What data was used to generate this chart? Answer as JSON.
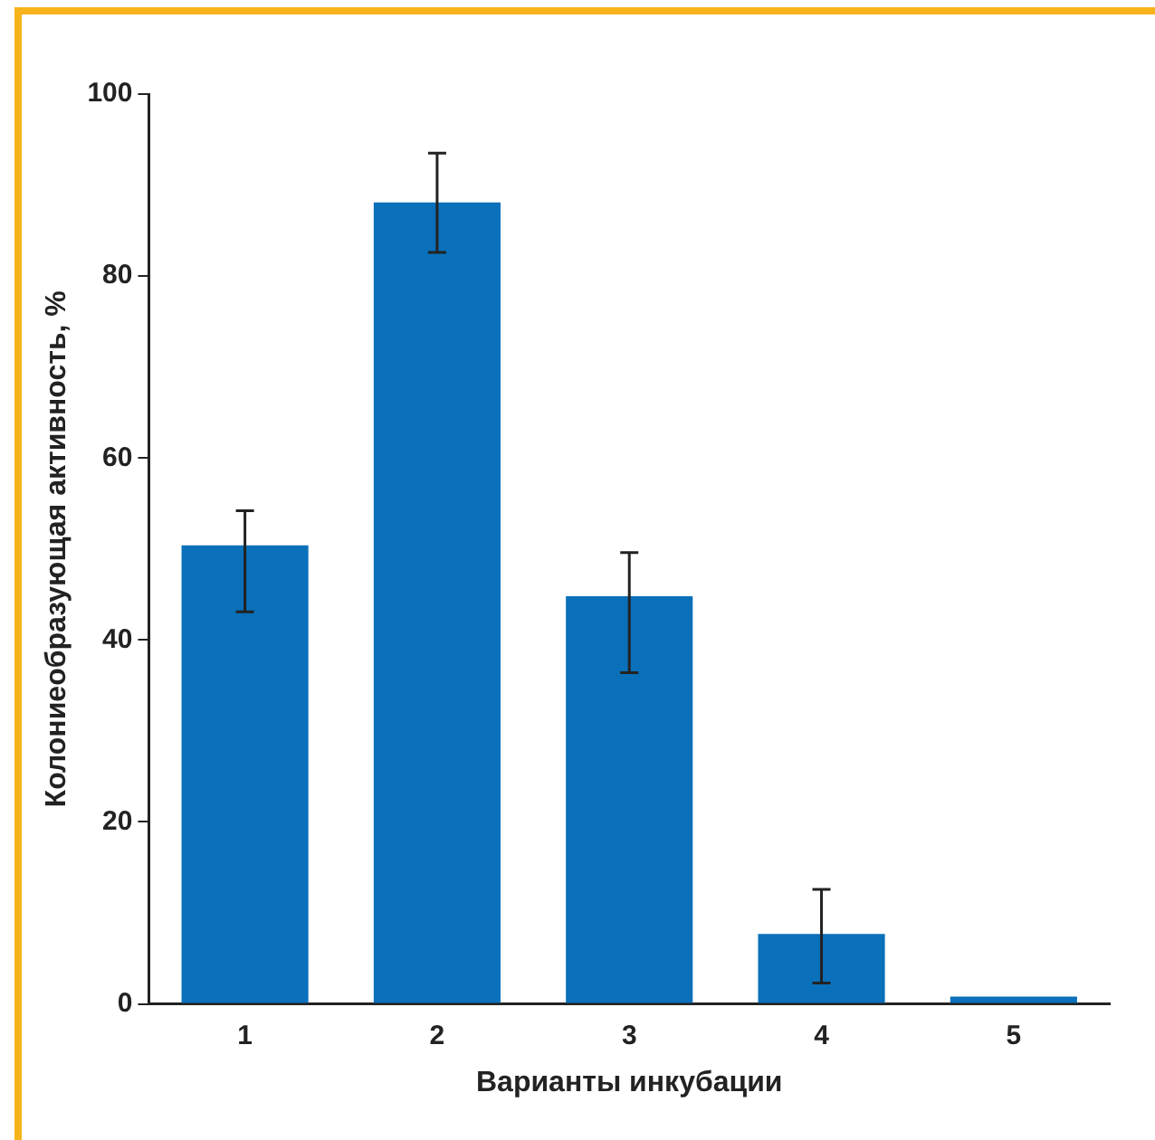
{
  "chart_data": {
    "type": "bar",
    "xlabel": "Варианты инкубации",
    "ylabel": "Колониеобразующая активность, %",
    "categories": [
      "1",
      "2",
      "3",
      "4",
      "5"
    ],
    "values": [
      50.4,
      88.1,
      44.8,
      7.7,
      0.8
    ],
    "errors": [
      [
        43.1,
        54.2
      ],
      [
        82.6,
        93.5
      ],
      [
        36.4,
        49.6
      ],
      [
        2.3,
        12.6
      ],
      null
    ],
    "color": "#0a70b9",
    "ylim": [
      0,
      100
    ],
    "yticks": [
      0,
      20,
      40,
      60,
      80,
      100
    ],
    "grid": false,
    "legend": false
  }
}
